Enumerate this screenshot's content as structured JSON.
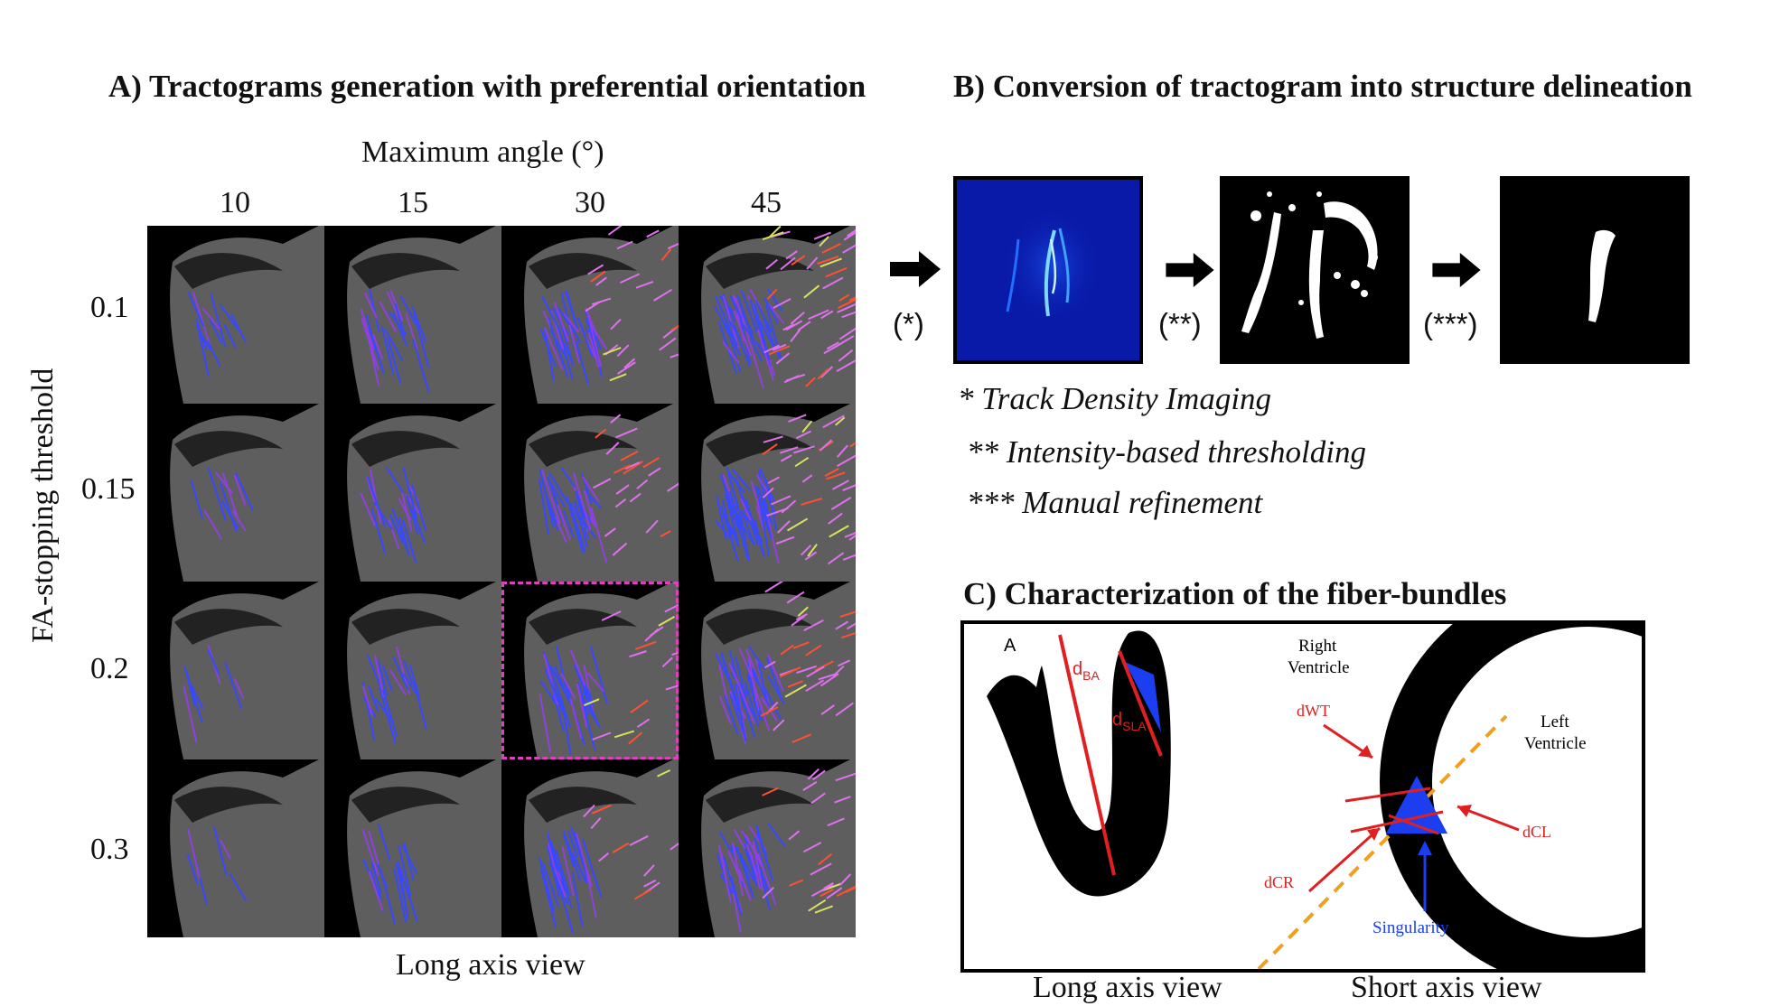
{
  "panel_a": {
    "title": "A) Tractograms generation with preferential orientation",
    "col_axis_title": "Maximum angle (°)",
    "col_labels": [
      "10",
      "15",
      "30",
      "45"
    ],
    "row_axis_title": "FA-stopping threshold",
    "row_labels": [
      "0.1",
      "0.15",
      "0.2",
      "0.3"
    ],
    "bottom_label": "Long axis view",
    "highlight": {
      "row": 2,
      "col": 2,
      "color": "#e040c0"
    }
  },
  "panel_b": {
    "title": "B) Conversion of tractogram into structure delineation",
    "steps": [
      "(*)",
      "(**)",
      "(***)"
    ],
    "notes": [
      "* Track Density Imaging",
      "** Intensity-based thresholding",
      "*** Manual refinement"
    ]
  },
  "panel_c": {
    "title": "C) Characterization of the fiber-bundles",
    "long_axis": {
      "marker": "A",
      "d_ba_main": "d",
      "d_ba_sub": "BA",
      "d_sla_main": "d",
      "d_sla_sub": "SLA",
      "caption": "Long axis view"
    },
    "short_axis": {
      "right_ventricle_1": "Right",
      "right_ventricle_2": "Ventricle",
      "left_ventricle_1": "Left",
      "left_ventricle_2": "Ventricle",
      "dwt": "dWT",
      "dcl": "dCL",
      "dcr": "dCR",
      "singularity": "Singularity",
      "caption": "Short axis view"
    },
    "colors": {
      "measure": "#e02020",
      "singularity": "#1a3ef0",
      "diagonal": "#f0a020"
    }
  }
}
